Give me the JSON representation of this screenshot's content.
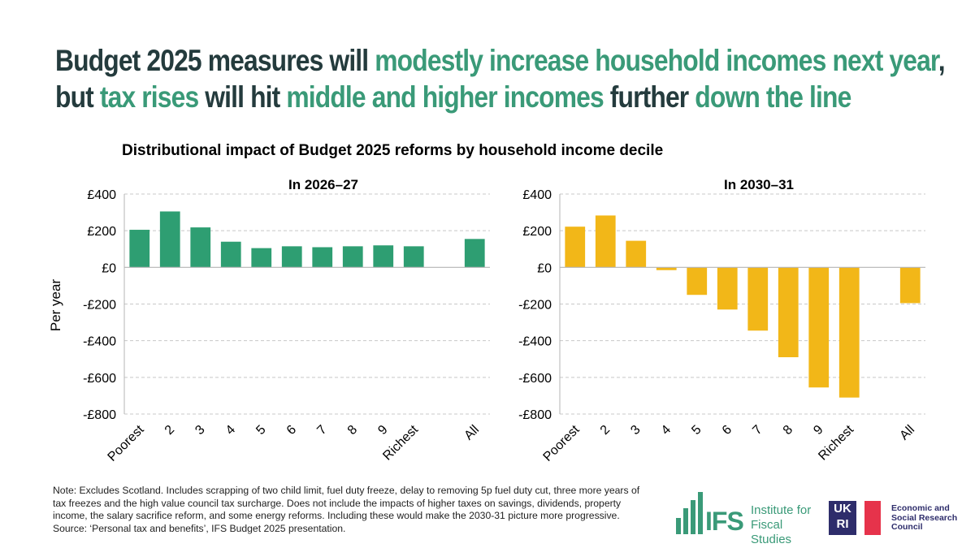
{
  "headline": {
    "line1": [
      {
        "text": "Budget 2025 measures will ",
        "highlight": false
      },
      {
        "text": "modestly increase household incomes next year",
        "highlight": true
      },
      {
        "text": ",",
        "highlight": false
      }
    ],
    "line2": [
      {
        "text": "but ",
        "highlight": false
      },
      {
        "text": "tax rises",
        "highlight": true
      },
      {
        "text": " will hit ",
        "highlight": false
      },
      {
        "text": "middle and higher incomes",
        "highlight": true
      },
      {
        "text": " further ",
        "highlight": false
      },
      {
        "text": "down the line",
        "highlight": true
      }
    ]
  },
  "chart_title": "Distributional impact of Budget 2025 reforms by household income decile",
  "ylabel": "Per year",
  "colors": {
    "headline_dark": "#243b3d",
    "headline_accent": "#3a9a78",
    "panel1_bar": "#2e9e72",
    "panel2_bar": "#f2b718",
    "grid": "#c8c8c8",
    "axis": "#b5b5b5"
  },
  "chart_data": [
    {
      "type": "bar",
      "title": "In 2026–27",
      "categories": [
        "Poorest",
        "2",
        "3",
        "4",
        "5",
        "6",
        "7",
        "8",
        "9",
        "Richest",
        "",
        "All"
      ],
      "values": [
        205,
        305,
        218,
        140,
        105,
        115,
        110,
        115,
        120,
        115,
        null,
        155
      ],
      "ylim": [
        -800,
        400
      ],
      "yticks": [
        400,
        200,
        0,
        -200,
        -400,
        -600,
        -800
      ],
      "ytick_labels": [
        "£400",
        "£200",
        "£0",
        "-£200",
        "-£400",
        "-£600",
        "-£800"
      ],
      "ylabel": "Per year",
      "grid": true
    },
    {
      "type": "bar",
      "title": "In 2030–31",
      "categories": [
        "Poorest",
        "2",
        "3",
        "4",
        "5",
        "6",
        "7",
        "8",
        "9",
        "Richest",
        "",
        "All"
      ],
      "values": [
        222,
        283,
        145,
        -15,
        -150,
        -230,
        -345,
        -490,
        -655,
        -710,
        null,
        -195
      ],
      "ylim": [
        -800,
        400
      ],
      "yticks": [
        400,
        200,
        0,
        -200,
        -400,
        -600,
        -800
      ],
      "ytick_labels": [
        "£400",
        "£200",
        "£0",
        "-£200",
        "-£400",
        "-£600",
        "-£800"
      ],
      "ylabel": "",
      "grid": true
    }
  ],
  "footnote": "Note: Excludes Scotland. Includes scrapping of two child limit, fuel duty freeze, delay to removing 5p fuel duty cut, three more years of tax freezes and the high value council tax surcharge. Does not include the impacts of higher taxes on savings, dividends, property income, the salary sacrifice reform, and some energy reforms. Including these would make the 2030-31 picture more progressive. Source: ‘Personal tax and benefits’, IFS Budget 2025 presentation.",
  "logos": {
    "ifs_mark": "IFS",
    "ifs_name": "Institute for Fiscal Studies",
    "ukri_mark": "UK RI",
    "esrc_name": "Economic and Social Research Council"
  }
}
